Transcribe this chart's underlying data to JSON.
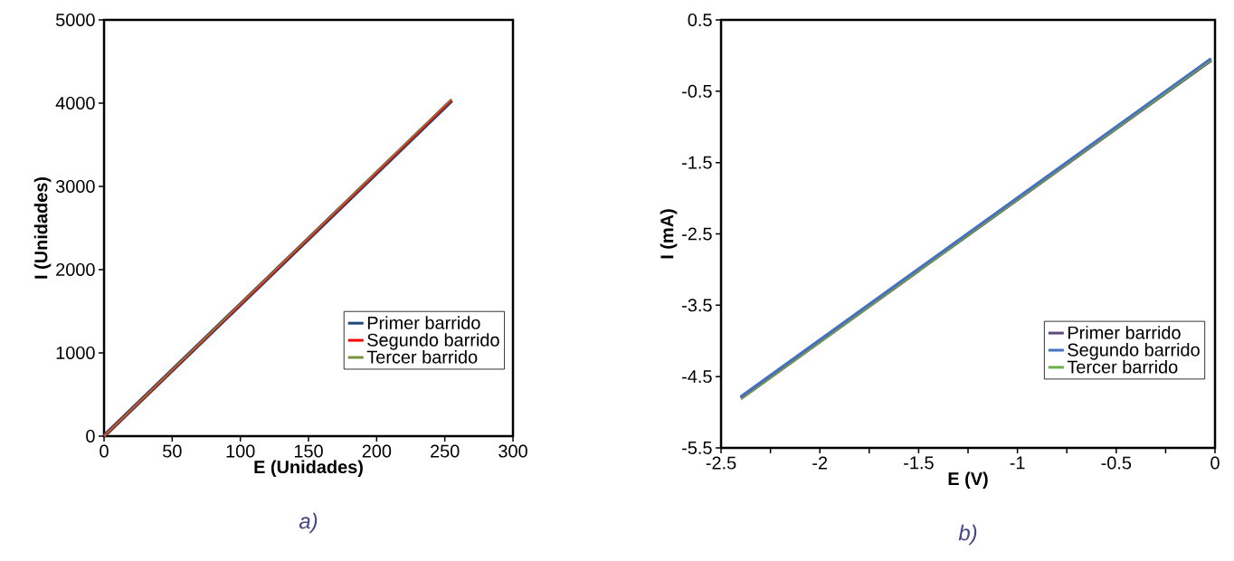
{
  "chart_data": [
    {
      "type": "line",
      "xlabel": "E (Unidades)",
      "ylabel": "I (Unidades)",
      "annotations": [
        "a)"
      ],
      "xlim": [
        0,
        300
      ],
      "ylim": [
        0,
        5000
      ],
      "xticks": [
        0,
        50,
        100,
        150,
        200,
        250,
        300
      ],
      "yticks": [
        0,
        1000,
        2000,
        3000,
        4000,
        5000
      ],
      "legend": "bottom right",
      "series": [
        {
          "name": "Primer barrido",
          "color": "#1f497d",
          "x": [
            0,
            255
          ],
          "values": [
            0,
            4030
          ]
        },
        {
          "name": "Segundo barrido",
          "color": "#ff0000",
          "x": [
            0,
            255
          ],
          "values": [
            0,
            4040
          ]
        },
        {
          "name": "Tercer barrido",
          "color": "#77933c",
          "x": [
            0,
            255
          ],
          "values": [
            0,
            4050
          ]
        }
      ]
    },
    {
      "type": "line",
      "xlabel": "E (V)",
      "ylabel": "I (mA)",
      "annotations": [
        "b)"
      ],
      "xlim": [
        -2.5,
        0
      ],
      "ylim": [
        -5.5,
        0.5
      ],
      "xticks": [
        -2.5,
        {
          "value": -2.25,
          "label": null
        },
        -2,
        {
          "value": -1.75,
          "label": null
        },
        -1.5,
        {
          "value": -1.25,
          "label": null
        },
        -1,
        {
          "value": -0.75,
          "label": null
        },
        -0.5,
        {
          "value": -0.25,
          "label": null
        },
        0
      ],
      "yticks": [
        -5.5,
        -4.5,
        -3.5,
        -2.5,
        -1.5,
        -0.5,
        0.5
      ],
      "legend": "bottom right",
      "series": [
        {
          "name": "Primer barrido",
          "color": "#604a7b",
          "x": [
            -2.4,
            -0.02
          ],
          "values": [
            -4.8,
            -0.06
          ]
        },
        {
          "name": "Segundo barrido",
          "color": "#4472c4",
          "x": [
            -2.4,
            -0.02
          ],
          "values": [
            -4.78,
            -0.04
          ]
        },
        {
          "name": "Tercer barrido",
          "color": "#70ad47",
          "x": [
            -2.4,
            -0.02
          ],
          "values": [
            -4.82,
            -0.07
          ]
        }
      ]
    }
  ]
}
